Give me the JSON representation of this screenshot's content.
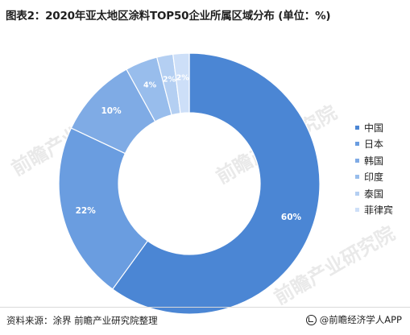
{
  "title": "图表2：2020年亚太地区涂料TOP50企业所属区域分布 (单位：%)",
  "chart_data": {
    "type": "pie",
    "style": "donut",
    "categories": [
      "中国",
      "日本",
      "韩国",
      "印度",
      "泰国",
      "菲律宾"
    ],
    "values": [
      60,
      22,
      10,
      4,
      2,
      2
    ],
    "labels": [
      "60%",
      "22%",
      "10%",
      "4%",
      "2%",
      "2%"
    ],
    "colors": [
      "#4b86d4",
      "#6a9de0",
      "#7fabe5",
      "#98bdec",
      "#b4cff2",
      "#cddff8"
    ],
    "label_color": "#ffffff",
    "legend_position": "right",
    "start_angle_deg": 0,
    "direction": "clockwise"
  },
  "watermark_text": "前瞻产业研究院",
  "source_text": "资料来源：涂界 前瞻产业研究院整理",
  "brand_text": "@前瞻经济学人APP",
  "brand_icon": "qianzhan-logo-icon"
}
